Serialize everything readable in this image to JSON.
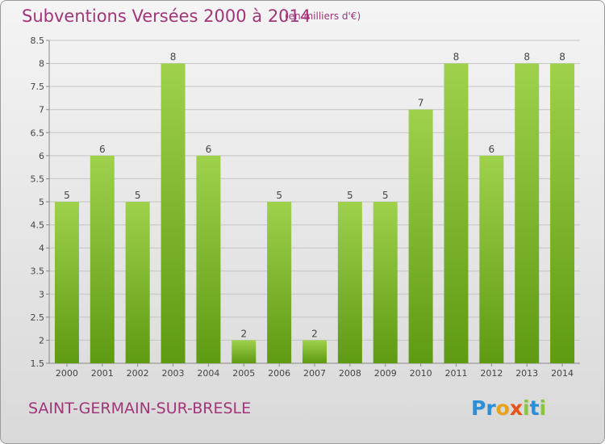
{
  "header": {
    "title": "Subventions Versées 2000 à 2014",
    "unit_note": "(en milliers d'€)"
  },
  "footer": {
    "commune": "SAINT-GERMAIN-SUR-BRESLE",
    "logo_letters": [
      "P",
      "r",
      "o",
      "x",
      "i",
      "t",
      "i"
    ],
    "logo_colors": [
      "#2f8fd6",
      "#2f8fd6",
      "#e8a21b",
      "#e5531b",
      "#8bc53f",
      "#2f8fd6",
      "#8bc53f"
    ]
  },
  "colors": {
    "bar_top": "#9fd14c",
    "bar_bottom": "#5e9a12",
    "grid": "#c4c4c4",
    "title": "#a0357a"
  },
  "chart_data": {
    "type": "bar",
    "title": "Subventions Versées 2000 à 2014",
    "xlabel": "",
    "ylabel": "",
    "categories": [
      "2000",
      "2001",
      "2002",
      "2003",
      "2004",
      "2005",
      "2006",
      "2007",
      "2008",
      "2009",
      "2010",
      "2011",
      "2012",
      "2013",
      "2014"
    ],
    "values": [
      5,
      6,
      5,
      8,
      6,
      2,
      5,
      2,
      5,
      5,
      7,
      8,
      6,
      8,
      8
    ],
    "data_labels": [
      "5",
      "6",
      "5",
      "8",
      "6",
      "2",
      "5",
      "2",
      "5",
      "5",
      "7",
      "8",
      "6",
      "8",
      "8"
    ],
    "ylim": [
      1.5,
      8.5
    ],
    "yticks": [
      "1.5",
      "2",
      "2.5",
      "3",
      "3.5",
      "4",
      "4.5",
      "5",
      "5.5",
      "6",
      "6.5",
      "7",
      "7.5",
      "8",
      "8.5"
    ],
    "grid": true
  }
}
